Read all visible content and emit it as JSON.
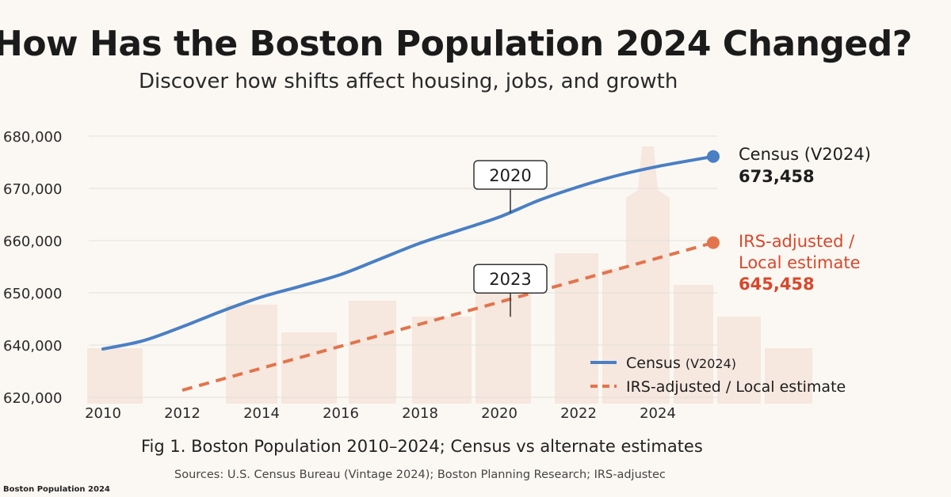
{
  "header": {
    "title": "How Has the Boston Population 2024 Changed?",
    "subtitle": "Discover how shifts affect housing, jobs, and growth"
  },
  "chart_data": {
    "type": "line",
    "ylim": [
      620000,
      680000
    ],
    "yticks": [
      {
        "value": 620000,
        "label": "620,000"
      },
      {
        "value": 640000,
        "label": "640,000"
      },
      {
        "value": 650000,
        "label": "650,000"
      },
      {
        "value": 660000,
        "label": "660,000"
      },
      {
        "value": 670000,
        "label": "670,000"
      },
      {
        "value": 680000,
        "label": "680,000"
      }
    ],
    "xticks": [
      2010,
      2012,
      2014,
      2016,
      2018,
      2020,
      2022,
      2024
    ],
    "xlim": [
      2010,
      2025.5
    ],
    "grid": true,
    "legend_position": "bottom-right",
    "series": [
      {
        "name": "Census",
        "name_suffix": "(V2024)",
        "color": "#4a7fc4",
        "style": "solid",
        "x": [
          2010,
          2011,
          2012,
          2013,
          2014,
          2015,
          2016,
          2017,
          2018,
          2019,
          2020,
          2021,
          2022,
          2023,
          2024,
          2025.4
        ],
        "y": [
          638500,
          640800,
          643500,
          646500,
          649200,
          651300,
          653500,
          656500,
          659500,
          662000,
          664500,
          667700,
          670300,
          672500,
          674200,
          676100
        ],
        "end_label_lines": [
          "Census (V2024)",
          "673,458"
        ],
        "end_label_color": "#1d1d1d"
      },
      {
        "name": "IRS-adjusted / Local estimate",
        "color": "#e2744c",
        "style": "dashed",
        "x": [
          2012,
          2025.4
        ],
        "y": [
          622700,
          659600
        ],
        "end_label_lines": [
          "IRS-adjusted /",
          "Local estimate",
          "645,458"
        ],
        "end_label_color": "#d9472b"
      }
    ],
    "annotations": [
      {
        "text": "2020",
        "x": 2020,
        "anchor_series": 0
      },
      {
        "text": "2023",
        "x": 2020,
        "anchor_series": 1
      }
    ]
  },
  "caption": "Fig 1. Boston Population 2010–2024; Census vs alternate estimates",
  "sources": "Sources: U.S. Census Bureau (Vintage 2024); Boston Planning Research; IRS-adjustec",
  "footer_label": "Boston Population 2024"
}
